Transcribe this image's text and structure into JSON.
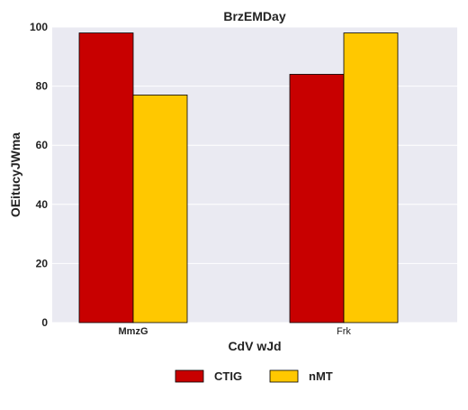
{
  "chart_data": {
    "type": "bar",
    "title": "BrzEMDay",
    "xlabel": "CdV wJd",
    "ylabel": "OEitucyJWma",
    "categories": [
      "MmzG",
      "Frk"
    ],
    "series": [
      {
        "name": "CTIG",
        "values": [
          98,
          84
        ],
        "color": "#c80000"
      },
      {
        "name": "nMT",
        "values": [
          77,
          98
        ],
        "color": "#ffc800"
      }
    ],
    "ylim": [
      0,
      100
    ],
    "yticks": [
      0,
      20,
      40,
      60,
      80,
      100
    ],
    "grid": true,
    "legend_position": "bottom-center",
    "background_color": "#eaeaf2"
  }
}
